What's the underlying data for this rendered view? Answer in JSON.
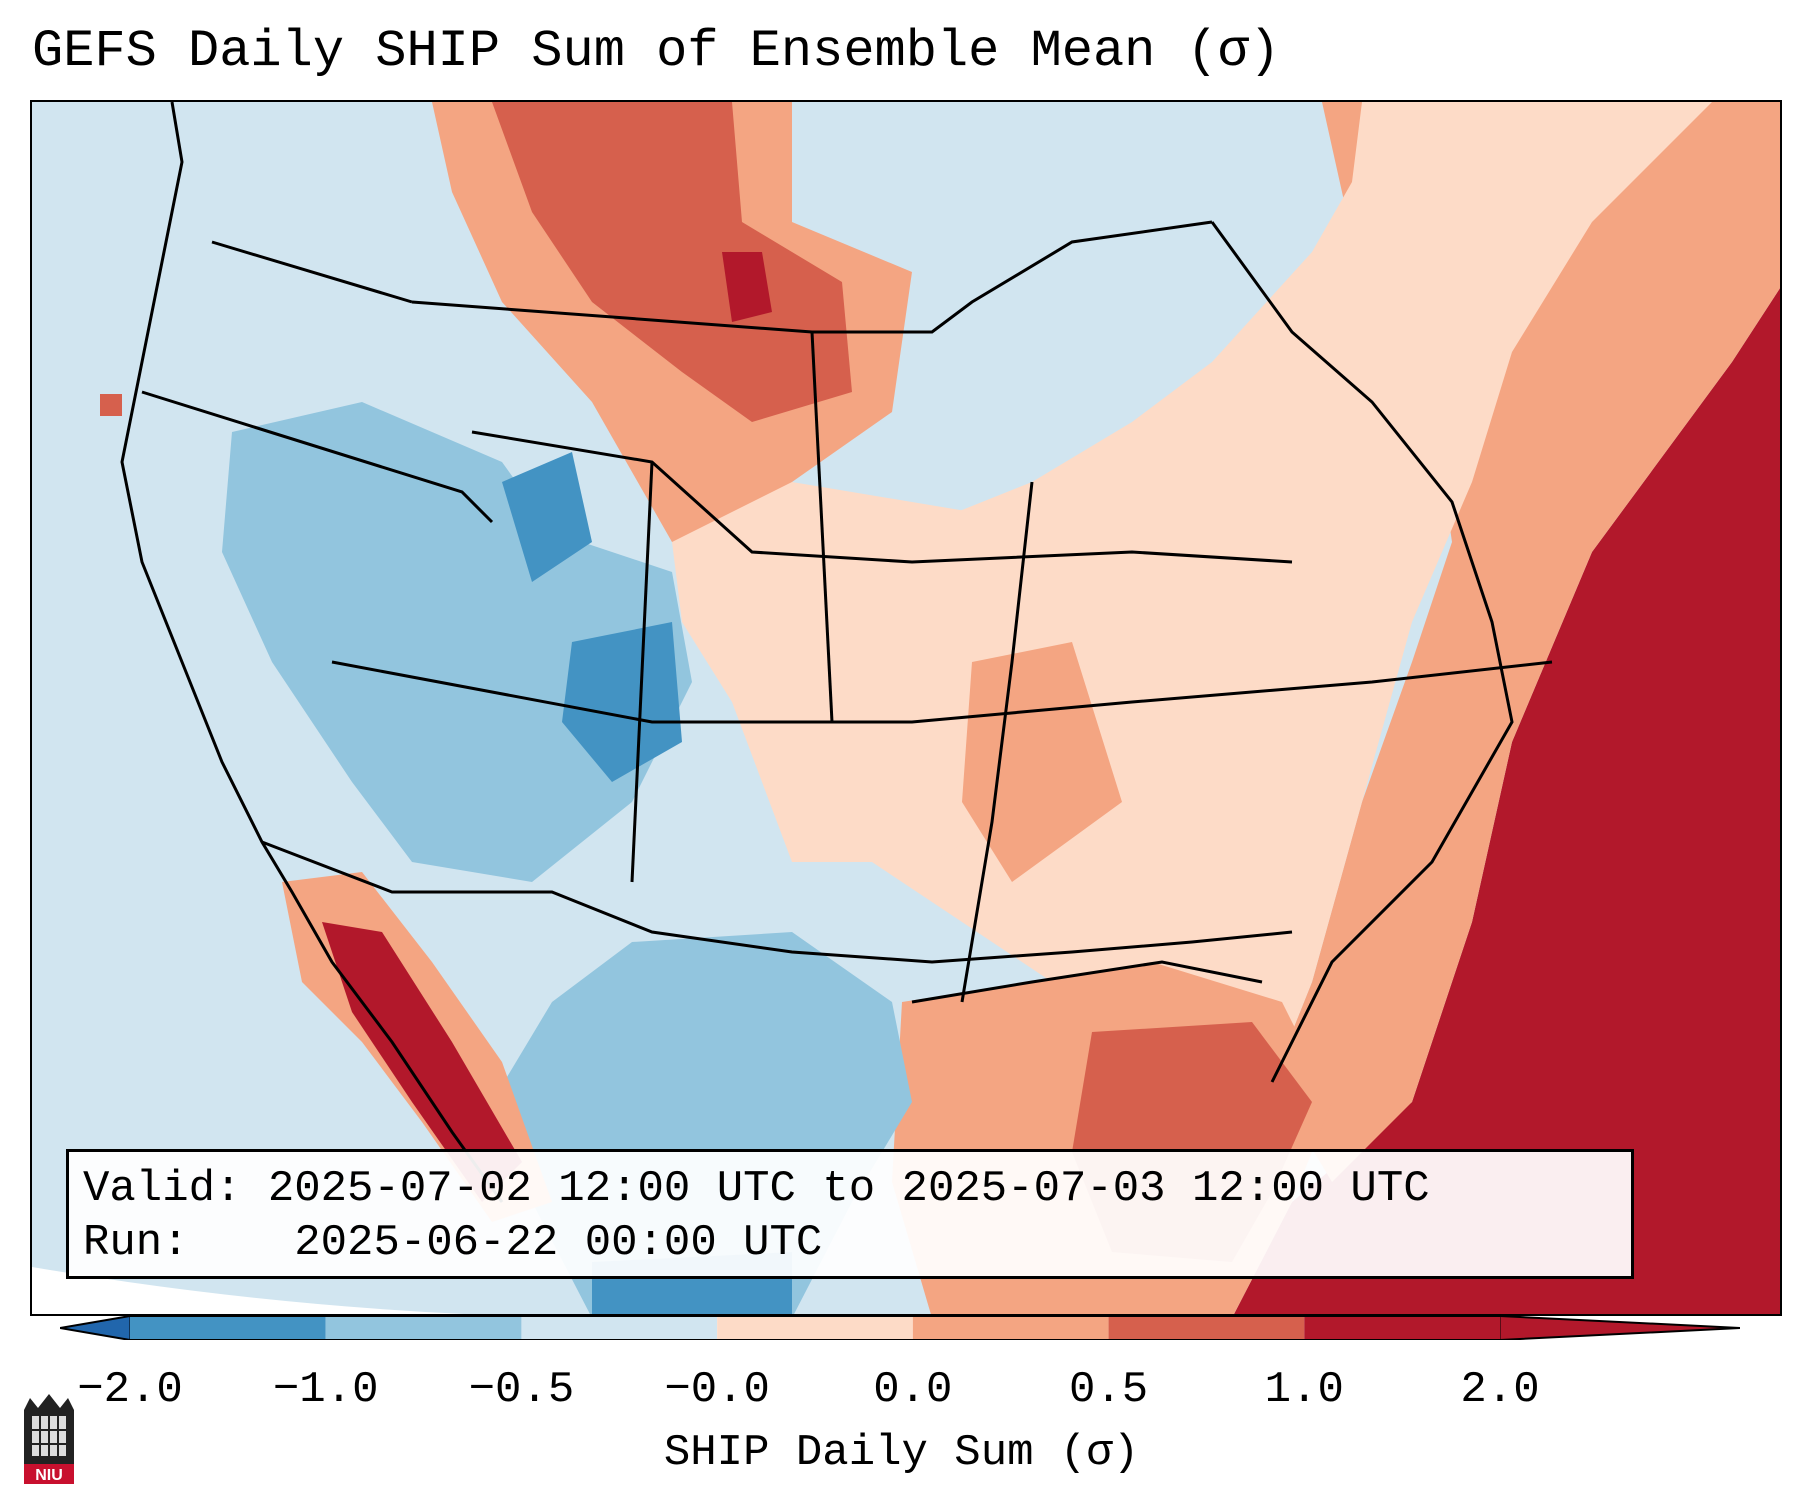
{
  "title": "GEFS Daily SHIP Sum of Ensemble Mean (σ)",
  "info_box": {
    "valid_label": "Valid:",
    "valid_value": "2025-07-02 12:00 UTC to 2025-07-03 12:00 UTC",
    "run_label": "Run:",
    "run_value": "2025-06-22 00:00 UTC"
  },
  "colorbar": {
    "label": "SHIP Daily Sum (σ)",
    "ticks": [
      "−2.0",
      "−1.0",
      "−0.5",
      "−0.0",
      "0.0",
      "0.5",
      "1.0",
      "2.0"
    ],
    "colors": [
      "#2166ac",
      "#4393c3",
      "#92c5de",
      "#d1e5f0",
      "#fddbc7",
      "#f4a582",
      "#d6604d",
      "#b2182b"
    ]
  },
  "logo": {
    "text": "NIU"
  },
  "colors": {
    "ocean": "#d1e5f0",
    "neutral_pos": "#fddbc7",
    "neutral_neg": "#d1e5f0"
  }
}
